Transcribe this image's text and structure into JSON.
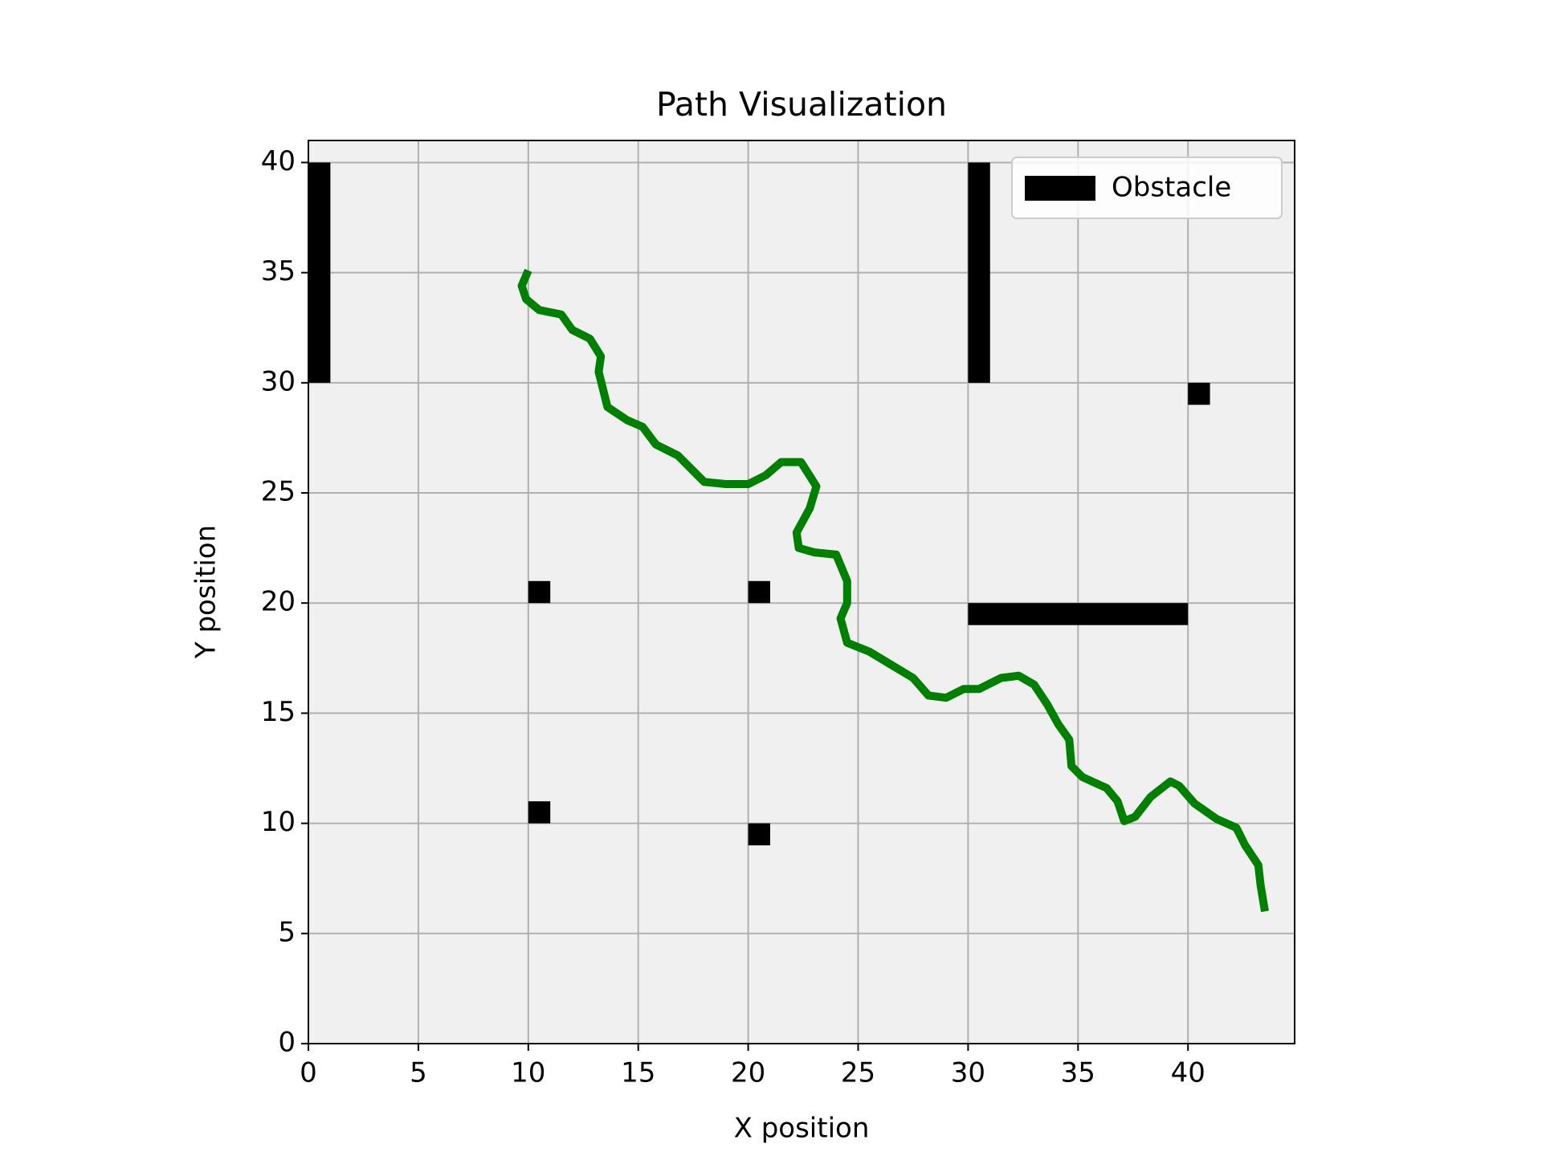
{
  "chart_data": {
    "type": "path",
    "title": "Path Visualization",
    "x_label": "X position",
    "y_label": "Y position",
    "xlim": [
      0,
      44.85
    ],
    "ylim": [
      0,
      41
    ],
    "xticks": [
      0,
      5,
      10,
      15,
      20,
      25,
      30,
      35,
      40
    ],
    "yticks": [
      0,
      5,
      10,
      15,
      20,
      25,
      30,
      35,
      40
    ],
    "grid": true,
    "legend": "upper right",
    "obstacles": {
      "name": "Obstacle",
      "color": "#000000",
      "x": [
        0,
        30,
        30,
        10,
        20,
        40,
        10,
        20
      ],
      "y": [
        30,
        30,
        19,
        20,
        20,
        29,
        10,
        9
      ],
      "width": [
        1,
        1,
        10,
        1,
        1,
        1,
        1,
        1
      ],
      "height": [
        10,
        10,
        1,
        1,
        1,
        1,
        1,
        1
      ]
    },
    "path": {
      "color": "#008000",
      "x": [
        10,
        9.7,
        9.9,
        10.5,
        11.5,
        12,
        12.8,
        13.3,
        13.2,
        13.5,
        13.6,
        14.5,
        15.2,
        15.8,
        16.8,
        17.5,
        18,
        19,
        20,
        20.8,
        21.5,
        22.4,
        23.1,
        22.8,
        22.2,
        22.3,
        23,
        24,
        24.5,
        24.5,
        24.2,
        24.5,
        25.5,
        26.5,
        27.5,
        28.2,
        29,
        29.8,
        30.5,
        31.5,
        32.3,
        33,
        33.6,
        34.1,
        34.6,
        34.7,
        35.2,
        36.3,
        36.8,
        37.1,
        37.6,
        38.3,
        39.2,
        39.6,
        40.3,
        41.3,
        42.2,
        42.6,
        43.2,
        43.3,
        43.5
      ],
      "y": [
        35.1,
        34.4,
        33.8,
        33.3,
        33.1,
        32.4,
        32,
        31.2,
        30.5,
        29.3,
        28.9,
        28.3,
        28,
        27.2,
        26.7,
        26,
        25.5,
        25.4,
        25.4,
        25.8,
        26.4,
        26.4,
        25.3,
        24.3,
        23.2,
        22.5,
        22.3,
        22.2,
        21,
        20,
        19.3,
        18.2,
        17.8,
        17.2,
        16.6,
        15.8,
        15.7,
        16.1,
        16.1,
        16.6,
        16.7,
        16.3,
        15.4,
        14.5,
        13.8,
        12.6,
        12.1,
        11.6,
        11,
        10.1,
        10.3,
        11.2,
        11.9,
        11.7,
        10.9,
        10.2,
        9.8,
        9,
        8.1,
        7.2,
        6
      ]
    }
  }
}
